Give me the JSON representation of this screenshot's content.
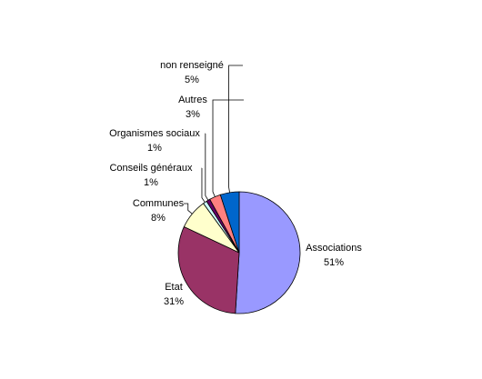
{
  "chart_data": {
    "type": "pie",
    "categories": [
      "Associations",
      "Etat",
      "Communes",
      "Conseils généraux",
      "Organismes sociaux",
      "Autres",
      "non renseigné"
    ],
    "values": [
      51,
      31,
      8,
      1,
      1,
      3,
      5
    ],
    "value_labels": [
      "51%",
      "31%",
      "8%",
      "1%",
      "1%",
      "3%",
      "5%"
    ],
    "colors": [
      "#9999ff",
      "#993366",
      "#ffffcc",
      "#ccffff",
      "#660066",
      "#ff8080",
      "#0066cc"
    ]
  }
}
